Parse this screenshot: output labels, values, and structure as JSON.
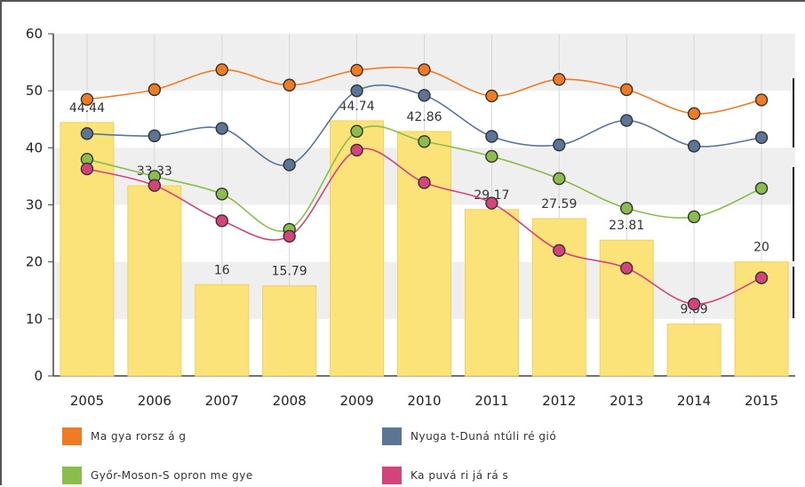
{
  "chart_data": {
    "type": "bar",
    "categories": [
      "2005",
      "2006",
      "2007",
      "2008",
      "2009",
      "2010",
      "2011",
      "2012",
      "2013",
      "2014",
      "2015"
    ],
    "bars": {
      "values": [
        44.44,
        33.33,
        16,
        15.79,
        44.74,
        42.86,
        29.17,
        27.59,
        23.81,
        9.09,
        20
      ],
      "labels": [
        "44.44",
        "33.33",
        "16",
        "15.79",
        "44.74",
        "42.86",
        "29.17",
        "27.59",
        "23.81",
        "9.09",
        "20"
      ],
      "color": "#fbe37a"
    },
    "series": [
      {
        "name": "Magyarország",
        "type": "line",
        "color": "#f07b22",
        "values": [
          48.5,
          50.2,
          53.7,
          51.0,
          53.6,
          53.7,
          49.1,
          52.0,
          50.2,
          46.0,
          48.4
        ]
      },
      {
        "name": "Nyugat-Dunántúli régió",
        "type": "line",
        "color": "#5a7596",
        "values": [
          42.5,
          42.1,
          43.4,
          37.0,
          50.0,
          49.2,
          42.0,
          40.5,
          44.8,
          40.3,
          41.8
        ]
      },
      {
        "name": "Győr-Moson-Sopron megye",
        "type": "line",
        "color": "#8bbd4c",
        "values": [
          38.0,
          35.0,
          31.9,
          25.7,
          42.9,
          41.1,
          38.5,
          34.6,
          29.4,
          27.9,
          32.9
        ]
      },
      {
        "name": "Kapuvári járás",
        "type": "line",
        "color": "#d4447a",
        "values": [
          36.3,
          33.4,
          27.2,
          24.5,
          39.6,
          33.9,
          30.3,
          22.0,
          18.9,
          12.6,
          17.2
        ]
      }
    ],
    "ylim": [
      0,
      60
    ],
    "yticks": [
      "0",
      "10",
      "20",
      "30",
      "40",
      "50",
      "60"
    ],
    "grid": true,
    "legend_position": "bottom",
    "title": "",
    "xlabel": "",
    "ylabel": ""
  },
  "legend": [
    {
      "label": "Ma gya rorsz á g",
      "color": "#f07b22"
    },
    {
      "label": "Nyuga t-Duná ntúli ré gió",
      "color": "#5a7596"
    },
    {
      "label": "Győr-Moson-S opron me gye",
      "color": "#8bbd4c"
    },
    {
      "label": "Ka puvá ri já rá s",
      "color": "#d4447a"
    }
  ]
}
